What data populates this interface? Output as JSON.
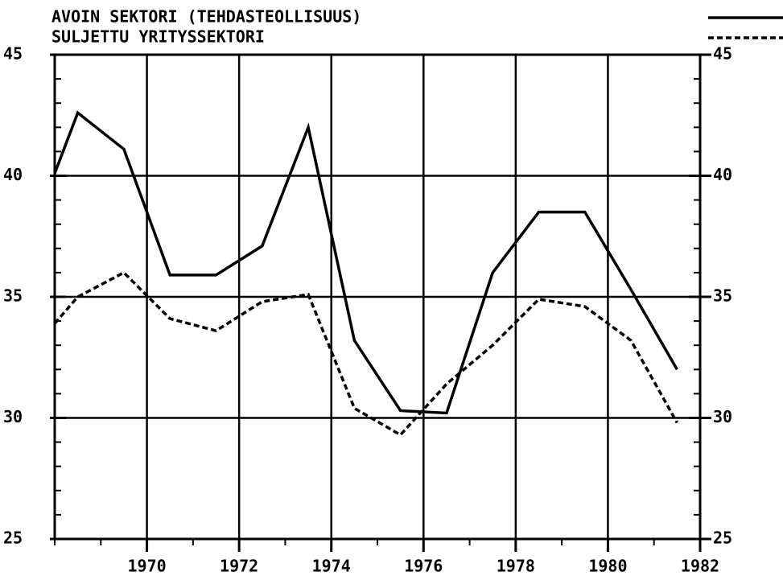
{
  "chart_data": {
    "type": "line",
    "x": [
      1968,
      1968.5,
      1969.5,
      1970.5,
      1971.5,
      1972.5,
      1973.5,
      1974.5,
      1975.5,
      1976.5,
      1977.5,
      1978.5,
      1979.5,
      1980.5,
      1981.5
    ],
    "series": [
      {
        "name": "AVOIN SEKTORI (TEHDASTEOLLISUUS)",
        "color": "#000000",
        "dash": "solid",
        "values": [
          40.1,
          42.6,
          41.1,
          35.9,
          35.9,
          37.1,
          42.0,
          33.2,
          30.3,
          30.2,
          36.0,
          38.5,
          38.5,
          35.3,
          32.0
        ]
      },
      {
        "name": "SULJETTU YRITYSSEKTORI",
        "color": "#000000",
        "dash": "dashed",
        "values": [
          33.9,
          35.0,
          36.0,
          34.1,
          33.6,
          34.8,
          35.1,
          30.4,
          29.3,
          31.4,
          33.0,
          34.9,
          34.6,
          33.2,
          29.8
        ]
      }
    ],
    "xlim": [
      1968,
      1982
    ],
    "xticks": [
      1970,
      1972,
      1974,
      1976,
      1978,
      1980,
      1982
    ],
    "ylim": [
      25,
      45
    ],
    "yticks": [
      25,
      30,
      35,
      40,
      45
    ],
    "grid": true
  }
}
